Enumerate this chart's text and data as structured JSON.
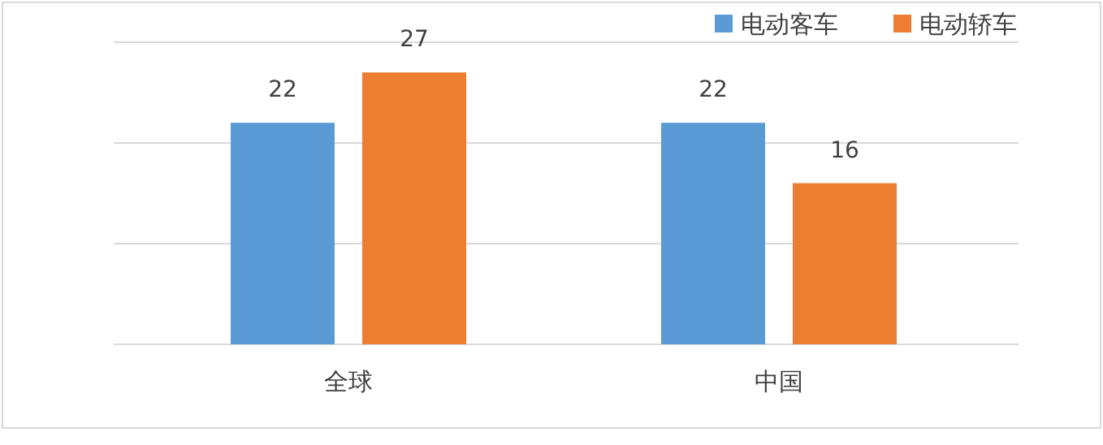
{
  "chart_data": {
    "type": "bar",
    "categories": [
      "全球",
      "中国"
    ],
    "series": [
      {
        "name": "电动客车",
        "color": "#5b9bd5",
        "values": [
          22,
          22
        ]
      },
      {
        "name": "电动轿车",
        "color": "#ed7d31",
        "values": [
          27,
          16
        ]
      }
    ],
    "ylim": [
      0,
      30
    ],
    "yticks": [
      {
        "value": 0,
        "label": null
      },
      {
        "value": 10,
        "label": null
      },
      {
        "value": 20,
        "label": null
      },
      {
        "value": 30,
        "label": null
      }
    ],
    "grid": "y",
    "tick_labels": "x",
    "data_labels": true,
    "legend": "top right"
  }
}
